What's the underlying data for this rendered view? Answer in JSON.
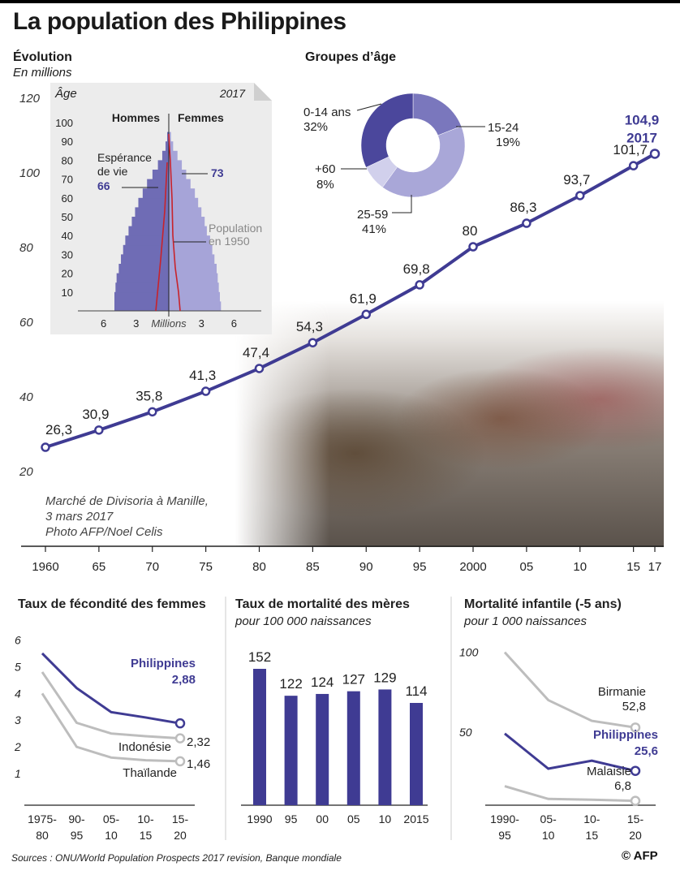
{
  "title": "La population des Philippines",
  "evolution": {
    "heading": "Évolution",
    "subheading": "En millions"
  },
  "age_groups": {
    "heading": "Groupes d’âge"
  },
  "photo_caption": [
    "Marché de Divisoria à Manille,",
    "3 mars 2017",
    "Photo AFP/Noel Celis"
  ],
  "sources": "Sources : ONU/World Population Prospects 2017 revision, Banque mondiale",
  "credit": "© AFP",
  "colors": {
    "accent": "#3f3b93",
    "grey_line": "#bdbdbd",
    "pyramid": "#6f6cb5",
    "red": "#c8232b"
  },
  "chart_data": [
    {
      "id": "population",
      "type": "line",
      "title": "Évolution",
      "subtitle": "En millions",
      "x": [
        1960,
        1965,
        1970,
        1975,
        1980,
        1985,
        1990,
        1995,
        2000,
        2005,
        2010,
        2015,
        2017
      ],
      "x_tick_labels": [
        "1960",
        "65",
        "70",
        "75",
        "80",
        "85",
        "90",
        "95",
        "2000",
        "05",
        "10",
        "15",
        "17"
      ],
      "values": [
        26.3,
        30.9,
        35.8,
        41.3,
        47.4,
        54.3,
        61.9,
        69.8,
        80,
        86.3,
        93.7,
        101.7,
        104.9
      ],
      "value_labels": [
        "26,3",
        "30,9",
        "35,8",
        "41,3",
        "47,4",
        "54,3",
        "61,9",
        "69,8",
        "80",
        "86,3",
        "93,7",
        "101,7",
        "104,9"
      ],
      "highlight_label": "2017",
      "y_ticks": [
        "20",
        "40",
        "60",
        "80",
        "100",
        "120"
      ],
      "ylim": [
        20,
        120
      ]
    },
    {
      "id": "pyramid",
      "type": "bar",
      "ylabel": "Âge",
      "year": "2017",
      "left_label": "Hommes",
      "right_label": "Femmes",
      "age_ticks": [
        "10",
        "20",
        "30",
        "40",
        "50",
        "60",
        "70",
        "80",
        "90",
        "100"
      ],
      "x_tick_labels": [
        "6",
        "3",
        "3",
        "6"
      ],
      "xlabel": "Millions",
      "life_expectancy_label": "Espérance de vie",
      "life_expectancy_men": "66",
      "life_expectancy_women": "73",
      "population_1950_label": "Population en 1950",
      "hommes": [
        5.0,
        5.0,
        4.9,
        4.8,
        4.6,
        4.4,
        4.2,
        4.0,
        3.7,
        3.4,
        3.1,
        2.8,
        2.4,
        2.0,
        1.5,
        1.0,
        0.6,
        0.3,
        0.15
      ],
      "femmes": [
        4.8,
        4.7,
        4.6,
        4.5,
        4.4,
        4.2,
        4.0,
        3.8,
        3.5,
        3.3,
        3.0,
        2.7,
        2.4,
        2.0,
        1.6,
        1.2,
        0.8,
        0.4,
        0.2
      ]
    },
    {
      "id": "age_groups",
      "type": "pie",
      "title": "Groupes d’âge",
      "labels": [
        "0-14 ans",
        "15-24",
        "25-59",
        "+60"
      ],
      "values": [
        32,
        19,
        41,
        8
      ],
      "value_labels": [
        "32%",
        "19%",
        "41%",
        "8%"
      ]
    },
    {
      "id": "fertility",
      "type": "line",
      "title": "Taux de fécondité des femmes",
      "categories": [
        "1975-80",
        "90-95",
        "05-10",
        "10-15",
        "15-20"
      ],
      "y_ticks": [
        "1",
        "2",
        "3",
        "4",
        "5",
        "6"
      ],
      "ylim": [
        0,
        6.5
      ],
      "series": [
        {
          "name": "Philippines",
          "values": [
            5.5,
            4.2,
            3.3,
            3.1,
            2.88
          ],
          "end_label": "2,88"
        },
        {
          "name": "Indonésie",
          "values": [
            4.8,
            2.9,
            2.5,
            2.4,
            2.32
          ],
          "end_label": "2,32"
        },
        {
          "name": "Thaïlande",
          "values": [
            4.0,
            2.0,
            1.6,
            1.5,
            1.46
          ],
          "end_label": "1,46"
        }
      ]
    },
    {
      "id": "maternal_mortality",
      "type": "bar",
      "title": "Taux de mortalité des mères",
      "subtitle": "pour 100 000 naissances",
      "categories": [
        "1990",
        "95",
        "00",
        "05",
        "10",
        "2015"
      ],
      "values": [
        152,
        122,
        124,
        127,
        129,
        114
      ],
      "ylim": [
        0,
        160
      ]
    },
    {
      "id": "child_mortality",
      "type": "line",
      "title": "Mortalité infantile (-5 ans)",
      "subtitle": "pour 1 000 naissances",
      "categories": [
        "1990-95",
        "05-10",
        "10-15",
        "15-20"
      ],
      "y_ticks": [
        "50",
        "100"
      ],
      "ylim": [
        0,
        110
      ],
      "series": [
        {
          "name": "Birmanie",
          "values": [
            100,
            70,
            57,
            52.8
          ],
          "end_label": "52,8"
        },
        {
          "name": "Philippines",
          "values": [
            49,
            27,
            32,
            25.6
          ],
          "end_label": "25,6"
        },
        {
          "name": "Malaisie",
          "values": [
            16,
            8,
            7.5,
            6.8
          ],
          "end_label": "6,8"
        }
      ]
    }
  ],
  "panels": {
    "fertility_title": "Taux de fécondité des femmes",
    "maternal_title": "Taux de mortalité des mères",
    "maternal_subtitle": "pour 100 000 naissances",
    "child_title": "Mortalité infantile (-5 ans)",
    "child_subtitle": "pour 1 000 naissances"
  }
}
